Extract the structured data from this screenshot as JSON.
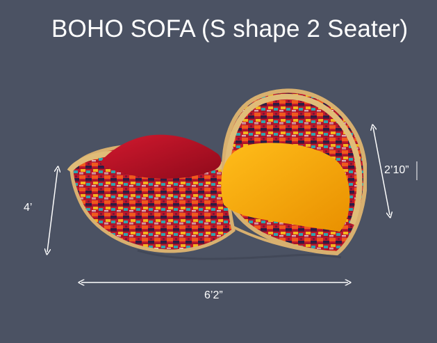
{
  "slide": {
    "title": "BOHO SOFA  (S shape 2 Seater)",
    "dimensions": {
      "height_label": "4’",
      "width_label": "6’2”",
      "side_label": "2’10”"
    },
    "colors": {
      "background": "#4b5263",
      "text": "#ffffff",
      "wicker": "#d8b06f",
      "weave_red": "#c0182c",
      "cushion_red": "#b60f22",
      "cushion_yellow": "#f0a60b"
    },
    "illustration": {
      "type": "sofa-photo",
      "object": "S-shape woven boho sofa"
    }
  }
}
